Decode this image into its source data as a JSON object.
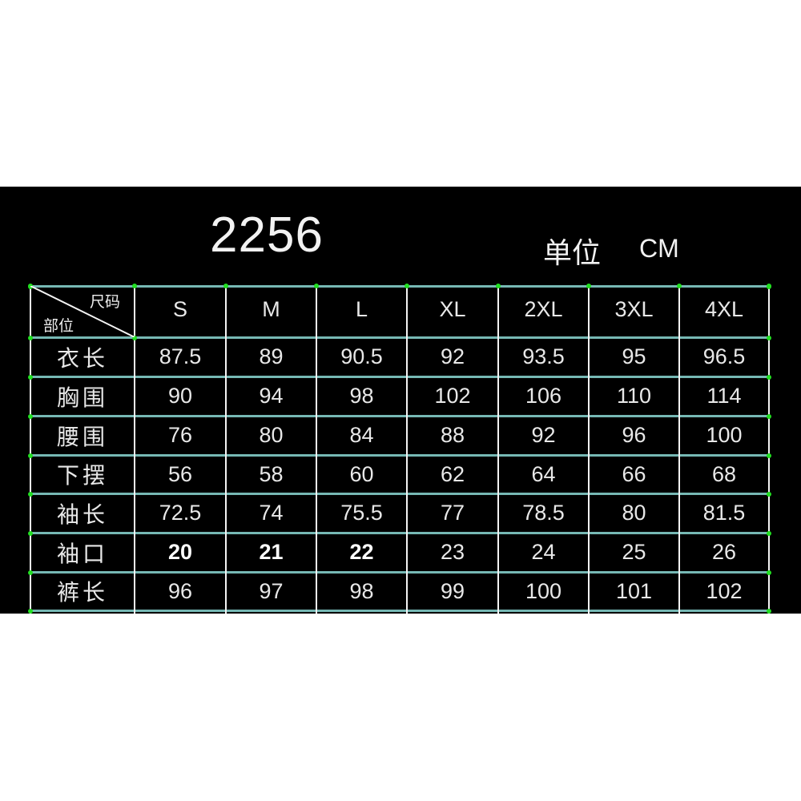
{
  "title": "2256",
  "unit_label": "单位",
  "unit_value": "CM",
  "colors": {
    "background": "#000000",
    "horizontal_lines": "#76b8b4",
    "vertical_lines": "#f4f4f4",
    "grid_points": "#22e022",
    "text": "#e8e8e8"
  },
  "table": {
    "corner_top": "尺码",
    "corner_bottom": "部位",
    "columns": [
      "S",
      "M",
      "L",
      "XL",
      "2XL",
      "3XL",
      "4XL"
    ],
    "rows": [
      {
        "label": "衣长",
        "values": [
          "87.5",
          "89",
          "90.5",
          "92",
          "93.5",
          "95",
          "96.5"
        ]
      },
      {
        "label": "胸围",
        "values": [
          "90",
          "94",
          "98",
          "102",
          "106",
          "110",
          "114"
        ]
      },
      {
        "label": "腰围",
        "values": [
          "76",
          "80",
          "84",
          "88",
          "92",
          "96",
          "100"
        ]
      },
      {
        "label": "下摆",
        "values": [
          "56",
          "58",
          "60",
          "62",
          "64",
          "66",
          "68"
        ]
      },
      {
        "label": "袖长",
        "values": [
          "72.5",
          "74",
          "75.5",
          "77",
          "78.5",
          "80",
          "81.5"
        ]
      },
      {
        "label": "袖口",
        "values": [
          "20",
          "21",
          "22",
          "23",
          "24",
          "25",
          "26"
        ]
      },
      {
        "label": "裤长",
        "values": [
          "96",
          "97",
          "98",
          "99",
          "100",
          "101",
          "102"
        ]
      }
    ]
  }
}
